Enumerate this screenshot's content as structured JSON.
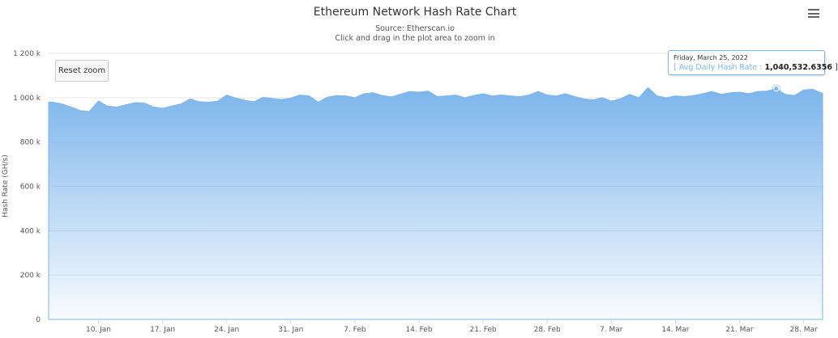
{
  "header": {
    "menu_icon": "hamburger-menu-icon"
  },
  "reset_zoom_label": "Reset zoom",
  "tooltip": {
    "date": "Friday, March 25, 2022",
    "open": "[",
    "series": "Avg Daily Hash Rate",
    "sep": ":",
    "value": "1,040,532.6356",
    "close": "]"
  },
  "chart_data": {
    "type": "area",
    "title": "Ethereum Network Hash Rate Chart",
    "subtitle": "Source: Etherscan.io",
    "subtitle2": "Click and drag in the plot area to zoom in",
    "xlabel": "",
    "ylabel": "Hash Rate (GH/s)",
    "ylim": [
      0,
      1200000
    ],
    "yticks": [
      0,
      200000,
      400000,
      600000,
      800000,
      1000000,
      1200000
    ],
    "ytick_labels": [
      "0",
      "200 k",
      "400 k",
      "600 k",
      "800 k",
      "1 000 k",
      "1 200 k"
    ],
    "xtick_labels": [
      "10. Jan",
      "17. Jan",
      "24. Jan",
      "31. Jan",
      "7. Feb",
      "14. Feb",
      "21. Feb",
      "28. Feb",
      "7. Mar",
      "14. Mar",
      "21. Mar",
      "28. Mar"
    ],
    "xtick_dates": [
      "2022-01-10",
      "2022-01-17",
      "2022-01-24",
      "2022-01-31",
      "2022-02-07",
      "2022-02-14",
      "2022-02-21",
      "2022-02-28",
      "2022-03-07",
      "2022-03-14",
      "2022-03-21",
      "2022-03-28"
    ],
    "x_start": "2022-01-05",
    "x_end": "2022-03-30",
    "grid": true,
    "color": "#7cb5ec",
    "series": [
      {
        "name": "Avg Daily Hash Rate",
        "values": [
          980000,
          972000,
          958000,
          942000,
          938000,
          985000,
          962000,
          958000,
          968000,
          978000,
          976000,
          958000,
          952000,
          962000,
          972000,
          994000,
          982000,
          980000,
          984000,
          1012000,
          998000,
          988000,
          982000,
          1002000,
          996000,
          992000,
          998000,
          1012000,
          1008000,
          980000,
          1002000,
          1010000,
          1008000,
          1000000,
          1018000,
          1022000,
          1010000,
          1004000,
          1016000,
          1028000,
          1025000,
          1030000,
          1005000,
          1008000,
          1012000,
          1000000,
          1010000,
          1018000,
          1008000,
          1012000,
          1008000,
          1005000,
          1012000,
          1028000,
          1012000,
          1008000,
          1018000,
          1005000,
          995000,
          990000,
          1000000,
          985000,
          995000,
          1015000,
          1000000,
          1045000,
          1008000,
          1000000,
          1008000,
          1005000,
          1010000,
          1018000,
          1028000,
          1015000,
          1022000,
          1025000,
          1018000,
          1028000,
          1030000,
          1040532.6356,
          1015000,
          1010000,
          1035000,
          1038000,
          1020000
        ]
      }
    ],
    "highlight": {
      "date": "2022-03-25",
      "value": 1040532.6356
    }
  }
}
